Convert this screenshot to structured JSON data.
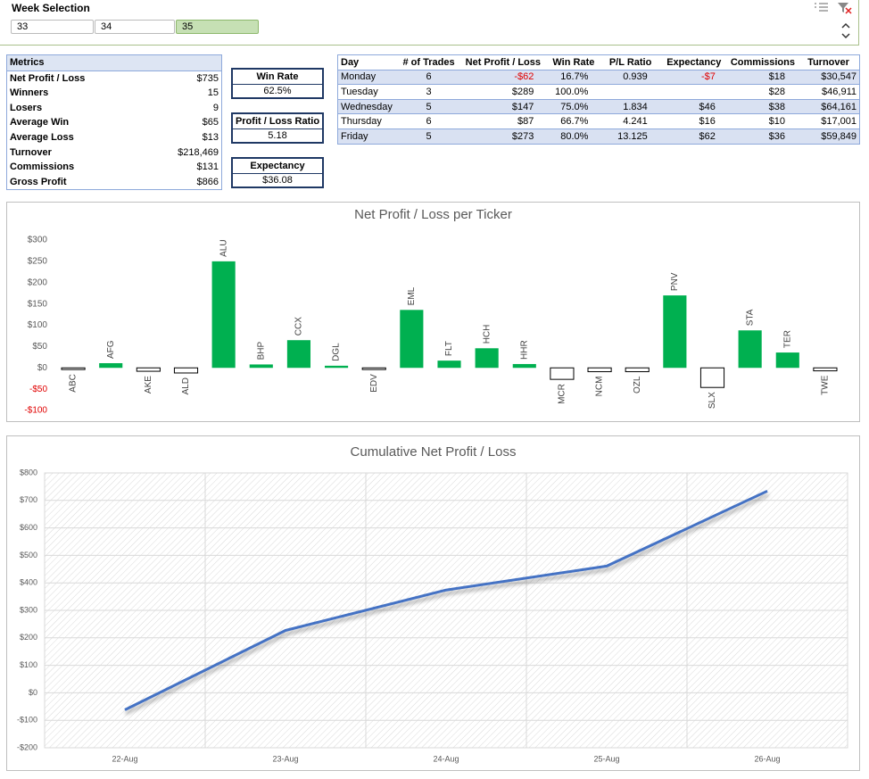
{
  "slicer": {
    "title": "Week Selection",
    "items": [
      "33",
      "34",
      "35"
    ],
    "selected_index": 2
  },
  "metrics": {
    "title": "Metrics",
    "rows": [
      [
        "Net Profit / Loss",
        "$735"
      ],
      [
        "Winners",
        "15"
      ],
      [
        "Losers",
        "9"
      ],
      [
        "Average Win",
        "$65"
      ],
      [
        "Average Loss",
        "$13"
      ],
      [
        "Turnover",
        "$218,469"
      ],
      [
        "Commissions",
        "$131"
      ],
      [
        "Gross Profit",
        "$866"
      ]
    ]
  },
  "kpis": [
    {
      "label": "Win Rate",
      "value": "62.5%"
    },
    {
      "label": "Profit / Loss Ratio",
      "value": "5.18"
    },
    {
      "label": "Expectancy",
      "value": "$36.08"
    }
  ],
  "day_table": {
    "header": [
      "Day",
      "# of Trades",
      "Net Profit / Loss",
      "Win Rate",
      "P/L Ratio",
      "Expectancy",
      "Commissions",
      "Turnover"
    ],
    "rows": [
      [
        "Monday",
        "6",
        "-$62",
        "16.7%",
        "0.939",
        "-$7",
        "$18",
        "$30,547"
      ],
      [
        "Tuesday",
        "3",
        "$289",
        "100.0%",
        null,
        null,
        "$28",
        "$46,911"
      ],
      [
        "Wednesday",
        "5",
        "$147",
        "75.0%",
        "1.834",
        "$46",
        "$38",
        "$64,161"
      ],
      [
        "Thursday",
        "6",
        "$87",
        "66.7%",
        "4.241",
        "$16",
        "$10",
        "$17,001"
      ],
      [
        "Friday",
        "5",
        "$273",
        "80.0%",
        "13.125",
        "$62",
        "$36",
        "$59,849"
      ]
    ]
  },
  "chart_data": [
    {
      "type": "bar",
      "title": "Net Profit / Loss per Ticker",
      "categories": [
        "ABC",
        "AFG",
        "AKE",
        "ALD",
        "ALU",
        "BHP",
        "CCX",
        "DGL",
        "EDV",
        "EML",
        "FLT",
        "HCH",
        "HHR",
        "MCR",
        "NCM",
        "OZL",
        "PNV",
        "SLX",
        "STA",
        "TER",
        "TWE"
      ],
      "values": [
        -4,
        11,
        -8,
        -12,
        250,
        8,
        65,
        5,
        -4,
        136,
        17,
        46,
        9,
        -27,
        -9,
        -9,
        170,
        -46,
        88,
        36,
        -7
      ],
      "color": "#00b050",
      "negative_color": "#ffffff",
      "ylim": [
        -100,
        300
      ],
      "yticks": [
        {
          "value": -100,
          "label": "-$100"
        },
        {
          "value": -50,
          "label": "-$50"
        },
        {
          "value": 0,
          "label": "$0"
        },
        {
          "value": 50,
          "label": "$50"
        },
        {
          "value": 100,
          "label": "$100"
        },
        {
          "value": 150,
          "label": "$150"
        },
        {
          "value": 200,
          "label": "$200"
        },
        {
          "value": 250,
          "label": "$250"
        },
        {
          "value": 300,
          "label": "$300"
        }
      ],
      "grid": false
    },
    {
      "type": "line",
      "title": "Cumulative Net Profit / Loss",
      "categories": [
        "22-Aug",
        "23-Aug",
        "24-Aug",
        "25-Aug",
        "26-Aug"
      ],
      "values": [
        -62,
        227,
        374,
        461,
        734
      ],
      "color": "#4472c4",
      "ylim": [
        -200,
        800
      ],
      "yticks": [
        {
          "value": -200,
          "label": "-$200"
        },
        {
          "value": -100,
          "label": "-$100"
        },
        {
          "value": 0,
          "label": "$0"
        },
        {
          "value": 100,
          "label": "$100"
        },
        {
          "value": 200,
          "label": "$200"
        },
        {
          "value": 300,
          "label": "$300"
        },
        {
          "value": 400,
          "label": "$400"
        },
        {
          "value": 500,
          "label": "$500"
        },
        {
          "value": 600,
          "label": "$600"
        },
        {
          "value": 700,
          "label": "$700"
        },
        {
          "value": 800,
          "label": "$800"
        }
      ],
      "grid": true
    }
  ]
}
